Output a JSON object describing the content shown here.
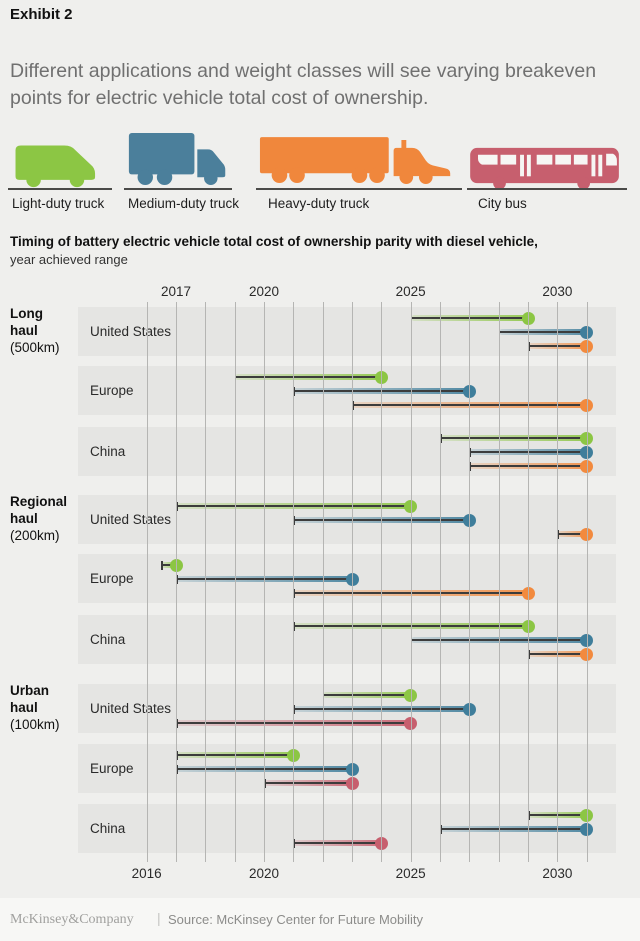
{
  "exhibit_label": "Exhibit 2",
  "title": "Different applications and weight classes will see varying breakeven points for electric vehicle total cost of ownership.",
  "legend": {
    "vehicles": [
      {
        "id": "light",
        "label": "Light-duty truck",
        "icon": "light-duty-truck-icon",
        "color": "#8CC644"
      },
      {
        "id": "medium",
        "label": "Medium-duty truck",
        "icon": "medium-duty-truck-icon",
        "color": "#4B7F9B"
      },
      {
        "id": "heavy",
        "label": "Heavy-duty truck",
        "icon": "heavy-duty-truck-icon",
        "color": "#F0873C"
      },
      {
        "id": "bus",
        "label": "City bus",
        "icon": "city-bus-icon",
        "color": "#C75F6E"
      }
    ]
  },
  "chart_data": {
    "type": "dumbbell-range",
    "title": "Timing of battery electric vehicle total cost of ownership parity with diesel vehicle,",
    "subtitle": "year achieved range",
    "x_axis_top_ticks": [
      2017,
      2020,
      2025,
      2030
    ],
    "x_axis_bottom_ticks": [
      2016,
      2020,
      2025,
      2030
    ],
    "xlim": [
      2016,
      2031
    ],
    "grid": "yearly vertical lines 2016-2031",
    "legend_position": "icons above chart",
    "series_colors": {
      "light": "#8CC644",
      "medium": "#3F7E9B",
      "heavy": "#F28A3E",
      "bus": "#C75F6E"
    },
    "groups": [
      {
        "label": "Long haul",
        "sub": "(500km)",
        "rows": [
          {
            "country": "United States",
            "ranges": [
              {
                "vehicle": "light",
                "start": 2025,
                "end": 2029
              },
              {
                "vehicle": "medium",
                "start": 2028,
                "end": 2031
              },
              {
                "vehicle": "heavy",
                "start": 2029,
                "end": 2031
              }
            ]
          },
          {
            "country": "Europe",
            "ranges": [
              {
                "vehicle": "light",
                "start": 2019,
                "end": 2024
              },
              {
                "vehicle": "medium",
                "start": 2021,
                "end": 2027
              },
              {
                "vehicle": "heavy",
                "start": 2023,
                "end": 2031
              }
            ]
          },
          {
            "country": "China",
            "ranges": [
              {
                "vehicle": "light",
                "start": 2026,
                "end": 2031
              },
              {
                "vehicle": "medium",
                "start": 2027,
                "end": 2031
              },
              {
                "vehicle": "heavy",
                "start": 2027,
                "end": 2031
              }
            ]
          }
        ]
      },
      {
        "label": "Regional haul",
        "sub": "(200km)",
        "rows": [
          {
            "country": "United States",
            "ranges": [
              {
                "vehicle": "light",
                "start": 2017,
                "end": 2025
              },
              {
                "vehicle": "medium",
                "start": 2021,
                "end": 2027
              },
              {
                "vehicle": "heavy",
                "start": 2030,
                "end": 2031
              }
            ]
          },
          {
            "country": "Europe",
            "ranges": [
              {
                "vehicle": "light",
                "start": 2016.5,
                "end": 2017
              },
              {
                "vehicle": "medium",
                "start": 2017,
                "end": 2023
              },
              {
                "vehicle": "heavy",
                "start": 2021,
                "end": 2029
              }
            ]
          },
          {
            "country": "China",
            "ranges": [
              {
                "vehicle": "light",
                "start": 2021,
                "end": 2029
              },
              {
                "vehicle": "medium",
                "start": 2025,
                "end": 2031
              },
              {
                "vehicle": "heavy",
                "start": 2029,
                "end": 2031
              }
            ]
          }
        ]
      },
      {
        "label": "Urban haul",
        "sub": "(100km)",
        "rows": [
          {
            "country": "United States",
            "ranges": [
              {
                "vehicle": "light",
                "start": 2022,
                "end": 2025
              },
              {
                "vehicle": "medium",
                "start": 2021,
                "end": 2027
              },
              {
                "vehicle": "bus",
                "start": 2017,
                "end": 2025
              }
            ]
          },
          {
            "country": "Europe",
            "ranges": [
              {
                "vehicle": "light",
                "start": 2017,
                "end": 2021
              },
              {
                "vehicle": "medium",
                "start": 2017,
                "end": 2023
              },
              {
                "vehicle": "bus",
                "start": 2020,
                "end": 2023
              }
            ]
          },
          {
            "country": "China",
            "ranges": [
              {
                "vehicle": "light",
                "start": 2029,
                "end": 2031
              },
              {
                "vehicle": "medium",
                "start": 2026,
                "end": 2031
              },
              {
                "vehicle": "bus",
                "start": 2021,
                "end": 2024
              }
            ]
          }
        ]
      }
    ]
  },
  "footer": {
    "brand": "McKinsey&Company",
    "separator": "|",
    "source": "Source: McKinsey Center for Future Mobility"
  }
}
